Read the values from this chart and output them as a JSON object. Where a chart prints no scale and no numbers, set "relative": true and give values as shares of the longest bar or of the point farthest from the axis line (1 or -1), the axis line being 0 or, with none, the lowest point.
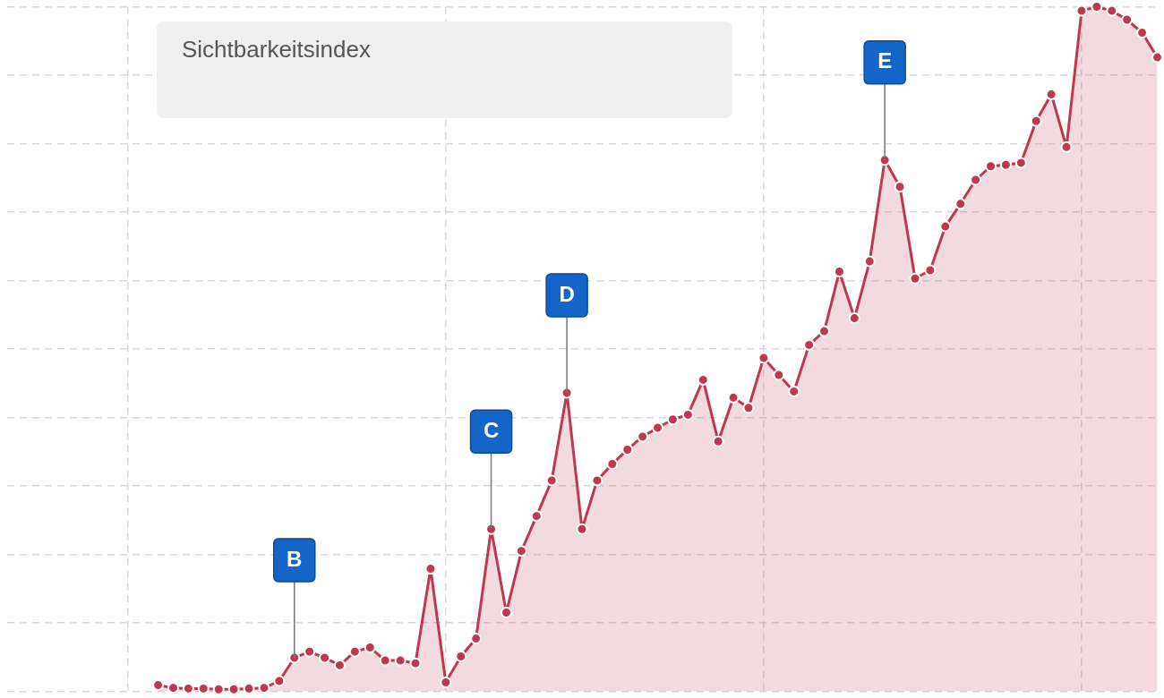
{
  "chart_data": {
    "type": "area",
    "title": "Sichtbarkeitsindex",
    "relative": true,
    "grid": true,
    "marker": "circle",
    "legend": false,
    "categories": [
      null,
      null,
      null,
      null,
      null,
      null,
      null,
      null,
      null,
      null,
      null,
      null,
      null,
      null,
      null,
      null,
      null,
      null,
      null,
      null,
      null,
      null,
      null,
      null,
      null,
      null,
      null,
      null,
      null,
      null,
      null,
      null,
      null,
      null,
      null,
      null,
      null,
      null,
      null,
      null,
      null,
      null,
      null,
      null,
      null,
      null,
      null,
      null,
      null,
      null,
      null,
      null,
      null,
      null,
      null,
      null,
      null,
      null,
      null,
      null,
      null,
      null,
      null,
      null,
      null,
      null,
      null,
      null,
      null,
      null,
      null,
      null,
      null,
      null,
      null,
      null,
      null
    ],
    "series": [
      {
        "color": "#c0384f",
        "values": [
          null,
          null,
          null,
          null,
          null,
          null,
          null,
          null,
          null,
          null,
          0.009,
          0.005,
          0.004,
          0.004,
          0.003,
          0.003,
          0.004,
          0.005,
          0.015,
          0.049,
          0.058,
          0.049,
          0.038,
          0.058,
          0.064,
          0.045,
          0.045,
          0.041,
          0.179,
          0.013,
          0.051,
          0.077,
          0.237,
          0.115,
          0.205,
          0.256,
          0.308,
          0.436,
          0.237,
          0.308,
          0.332,
          0.353,
          0.372,
          0.385,
          0.397,
          0.404,
          0.455,
          0.365,
          0.429,
          0.414,
          0.487,
          0.462,
          0.438,
          0.506,
          0.526,
          0.613,
          0.545,
          0.628,
          0.776,
          0.737,
          0.603,
          0.615,
          0.679,
          0.712,
          0.747,
          0.767,
          0.769,
          0.772,
          0.833,
          0.872,
          0.795,
          0.994,
          1,
          0.994,
          0.981,
          0.962,
          0.926
        ]
      }
    ],
    "annotations": [
      "B",
      "C",
      "D",
      "E"
    ]
  }
}
